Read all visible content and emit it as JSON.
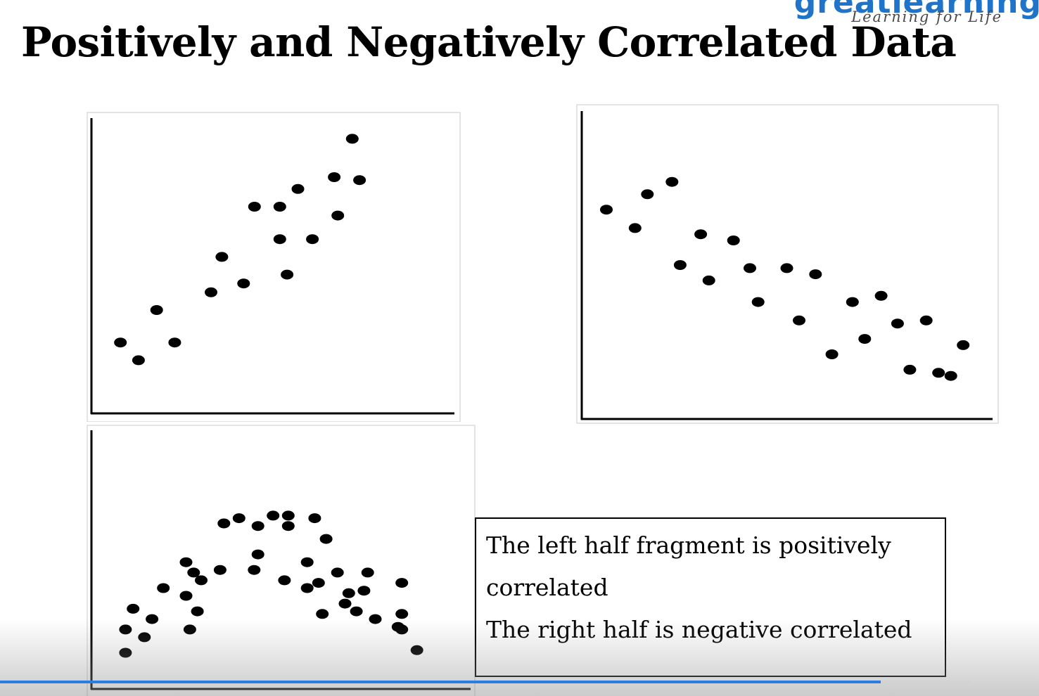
{
  "brand": {
    "word": "greatlearning",
    "tagline": "Learning for Life",
    "color": "#1f73c8"
  },
  "slide": {
    "title": "Positively and Negatively Correlated Data",
    "notes": [
      "The left half fragment is positively",
      "correlated",
      "The right half is negative correlated"
    ]
  },
  "chart_data": [
    {
      "type": "scatter",
      "title": "",
      "xlabel": "",
      "ylabel": "",
      "grid": false,
      "xlim": [
        0,
        100
      ],
      "ylim": [
        0,
        100
      ],
      "points": [
        [
          8,
          24
        ],
        [
          13,
          18
        ],
        [
          18,
          35
        ],
        [
          23,
          24
        ],
        [
          33,
          41
        ],
        [
          36,
          53
        ],
        [
          42,
          44
        ],
        [
          45,
          70
        ],
        [
          52,
          70
        ],
        [
          52,
          59
        ],
        [
          54,
          47
        ],
        [
          57,
          76
        ],
        [
          61,
          59
        ],
        [
          67,
          80
        ],
        [
          68,
          67
        ],
        [
          72,
          93
        ],
        [
          74,
          79
        ]
      ]
    },
    {
      "type": "scatter",
      "title": "",
      "xlabel": "",
      "ylabel": "",
      "grid": false,
      "xlim": [
        0,
        100
      ],
      "ylim": [
        0,
        100
      ],
      "points": [
        [
          6,
          68
        ],
        [
          13,
          62
        ],
        [
          16,
          73
        ],
        [
          22,
          77
        ],
        [
          24,
          50
        ],
        [
          29,
          60
        ],
        [
          31,
          45
        ],
        [
          37,
          58
        ],
        [
          41,
          49
        ],
        [
          43,
          38
        ],
        [
          50,
          49
        ],
        [
          53,
          32
        ],
        [
          57,
          47
        ],
        [
          61,
          21
        ],
        [
          66,
          38
        ],
        [
          69,
          26
        ],
        [
          73,
          40
        ],
        [
          77,
          31
        ],
        [
          80,
          16
        ],
        [
          84,
          32
        ],
        [
          87,
          15
        ],
        [
          90,
          14
        ],
        [
          93,
          24
        ]
      ]
    },
    {
      "type": "scatter",
      "title": "",
      "xlabel": "",
      "ylabel": "",
      "grid": false,
      "xlim": [
        0,
        100
      ],
      "ylim": [
        0,
        100
      ],
      "points": [
        [
          9,
          14
        ],
        [
          9,
          23
        ],
        [
          11,
          31
        ],
        [
          14,
          20
        ],
        [
          16,
          27
        ],
        [
          19,
          39
        ],
        [
          25,
          49
        ],
        [
          25,
          36
        ],
        [
          26,
          23
        ],
        [
          27,
          45
        ],
        [
          28,
          30
        ],
        [
          29,
          42
        ],
        [
          34,
          46
        ],
        [
          35,
          64
        ],
        [
          39,
          66
        ],
        [
          43,
          46
        ],
        [
          44,
          63
        ],
        [
          44,
          52
        ],
        [
          48,
          67
        ],
        [
          51,
          42
        ],
        [
          52,
          63
        ],
        [
          52,
          67
        ],
        [
          57,
          49
        ],
        [
          57,
          39
        ],
        [
          59,
          66
        ],
        [
          60,
          41
        ],
        [
          61,
          29
        ],
        [
          62,
          58
        ],
        [
          65,
          45
        ],
        [
          67,
          33
        ],
        [
          68,
          37
        ],
        [
          70,
          30
        ],
        [
          72,
          38
        ],
        [
          73,
          45
        ],
        [
          75,
          27
        ],
        [
          81,
          24
        ],
        [
          82,
          41
        ],
        [
          82,
          29
        ],
        [
          82,
          23
        ],
        [
          86,
          15
        ]
      ]
    }
  ]
}
